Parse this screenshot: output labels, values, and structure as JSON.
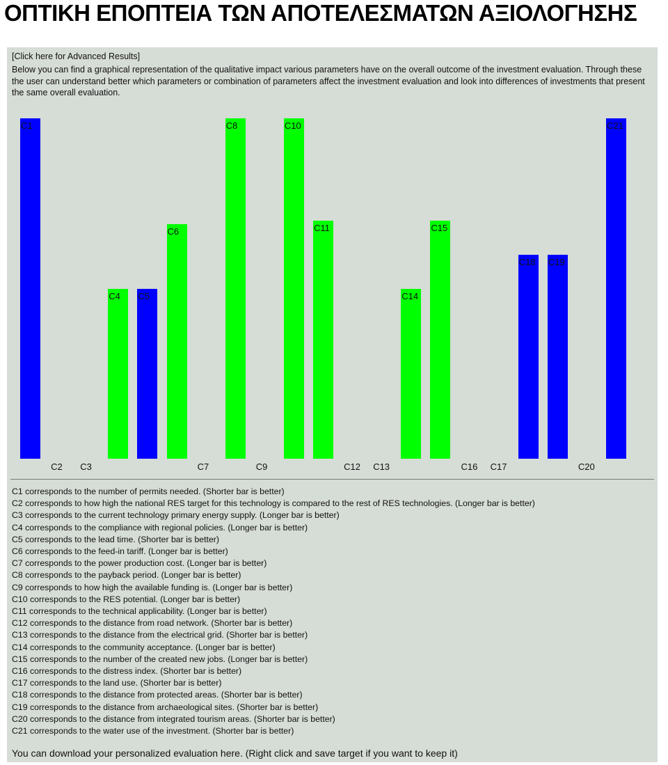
{
  "page_title": "ΟΠΤΙΚΗ ΕΠΟΠΤΕΙΑ ΤΩΝ ΑΠΟΤΕΛΕΣΜΑΤΩΝ ΑΞΙΟΛΟΓΗΣΗΣ",
  "advanced_link": "[Click here for Advanced Results]",
  "intro_text": "Below you can find a graphical representation of the qualitative impact various parameters have on the overall outcome of the investment evaluation. Through these the user can understand better which parameters or combination of parameters affect the investment evaluation and look into differences of investments that present the same overall evaluation.",
  "colors": {
    "blue": "#0000ff",
    "green": "#00ff00"
  },
  "chart_data": {
    "type": "bar",
    "categories": [
      "C1",
      "C2",
      "C3",
      "C4",
      "C5",
      "C6",
      "C7",
      "C8",
      "C9",
      "C10",
      "C11",
      "C12",
      "C13",
      "C14",
      "C15",
      "C16",
      "C17",
      "C18",
      "C19",
      "C20",
      "C21"
    ],
    "values": [
      100,
      0,
      0,
      50,
      50,
      69,
      0,
      100,
      0,
      100,
      70,
      0,
      0,
      50,
      70,
      0,
      0,
      60,
      60,
      0,
      100
    ],
    "bar_colors": [
      "blue",
      "",
      "",
      "green",
      "blue",
      "green",
      "",
      "green",
      "",
      "green",
      "green",
      "",
      "",
      "green",
      "green",
      "",
      "",
      "blue",
      "blue",
      "",
      "blue"
    ],
    "ylim": [
      0,
      100
    ]
  },
  "legend": [
    "C1 corresponds to the number of permits needed. (Shorter bar is better)",
    "C2 corresponds to how high the national RES target for this technology is compared to the rest of RES technologies. (Longer bar is better)",
    "C3 corresponds to the current technology primary energy supply. (Longer bar is better)",
    "C4 corresponds to the compliance with regional policies. (Longer bar is better)",
    "C5 corresponds to the lead time. (Shorter bar is better)",
    "C6 corresponds to the feed-in tariff. (Longer bar is better)",
    "C7 corresponds to the power production cost. (Longer bar is better)",
    "C8 corresponds to the payback period. (Longer bar is better)",
    "C9 corresponds to how high the available funding is. (Longer bar is better)",
    "C10 corresponds to the RES potential. (Longer bar is better)",
    "C11 corresponds to the technical applicability. (Longer bar is better)",
    "C12 corresponds to the distance from road network. (Shorter bar is better)",
    "C13 corresponds to the distance from the electrical grid. (Shorter bar is better)",
    "C14 corresponds to the community acceptance. (Longer bar is better)",
    "C15 corresponds to the number of the created new jobs. (Longer bar is better)",
    "C16 corresponds to the distress index. (Shorter bar is better)",
    "C17 corresponds to the land use. (Shorter bar is better)",
    "C18 corresponds to the distance from protected areas. (Shorter bar is better)",
    "C19 corresponds to the distance from archaeological sites. (Shorter bar is better)",
    "C20 corresponds to the distance from integrated tourism areas. (Shorter bar is better)",
    "C21 corresponds to the water use of the investment. (Shorter bar is better)"
  ],
  "download": {
    "prefix": "You can download your personalized evaluation ",
    "link": "here",
    "suffix": ". (Right click and save target if you want to keep it)"
  }
}
